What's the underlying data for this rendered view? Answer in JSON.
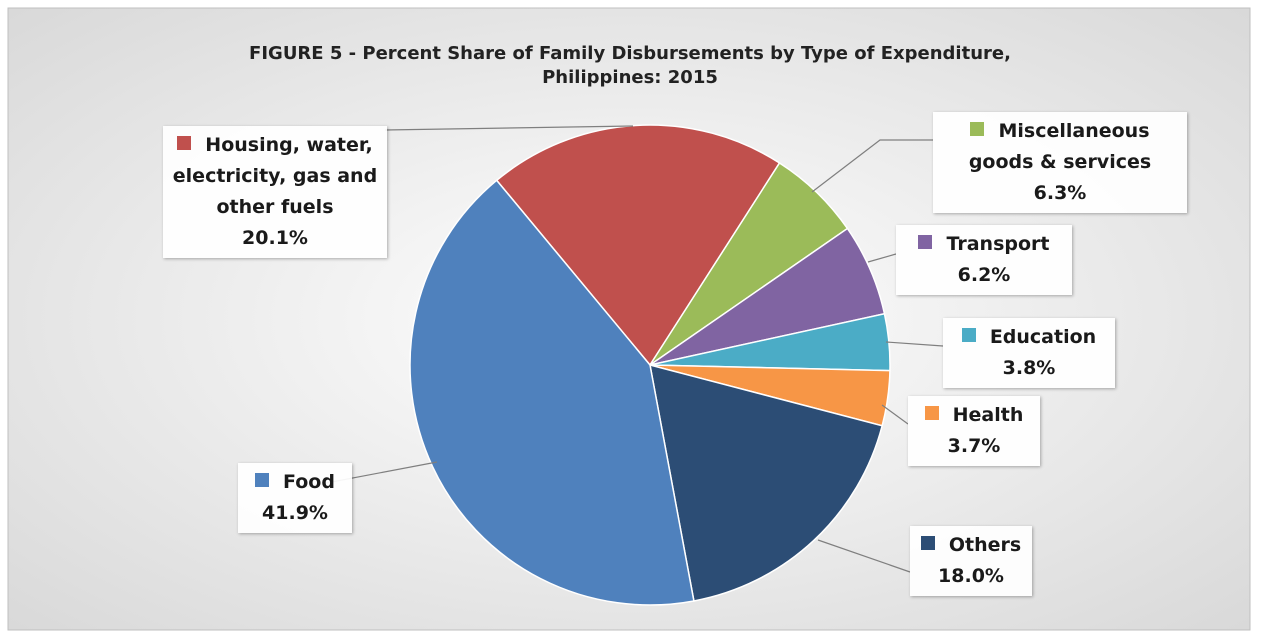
{
  "chart_data": {
    "type": "pie",
    "title": "FIGURE 5 - Percent Share of Family Disbursements by Type of Expenditure, Philippines: 2015",
    "categories": [
      "Housing, water, electricity, gas and other fuels",
      "Miscellaneous goods & services",
      "Transport",
      "Education",
      "Health",
      "Others",
      "Food"
    ],
    "values": [
      20.1,
      6.3,
      6.2,
      3.8,
      3.7,
      18.0,
      41.9
    ],
    "value_labels": [
      "20.1%",
      "6.3%",
      "6.2%",
      "3.8%",
      "3.7%",
      "18.0%",
      "41.9%"
    ],
    "colors": [
      "#c0504d",
      "#9bbb59",
      "#8064a2",
      "#4bacc6",
      "#f79646",
      "#2c4d75",
      "#4f81bd"
    ]
  }
}
